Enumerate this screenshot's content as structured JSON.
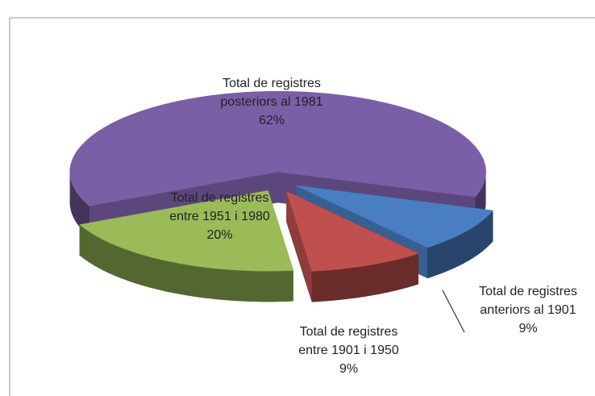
{
  "chart_data": {
    "type": "pie3d",
    "categories": [
      "Total de registres posteriors al 1981",
      "Total de registres anteriors al 1901",
      "Total de registres entre 1901 i 1950",
      "Total de registres entre 1951 i 1980"
    ],
    "values": [
      62,
      9,
      9,
      20
    ],
    "value_labels": [
      "62%",
      "9%",
      "9%",
      "20%"
    ],
    "colors": [
      "#7b5fa6",
      "#4a7ec2",
      "#c0504d",
      "#9bbb59"
    ]
  }
}
